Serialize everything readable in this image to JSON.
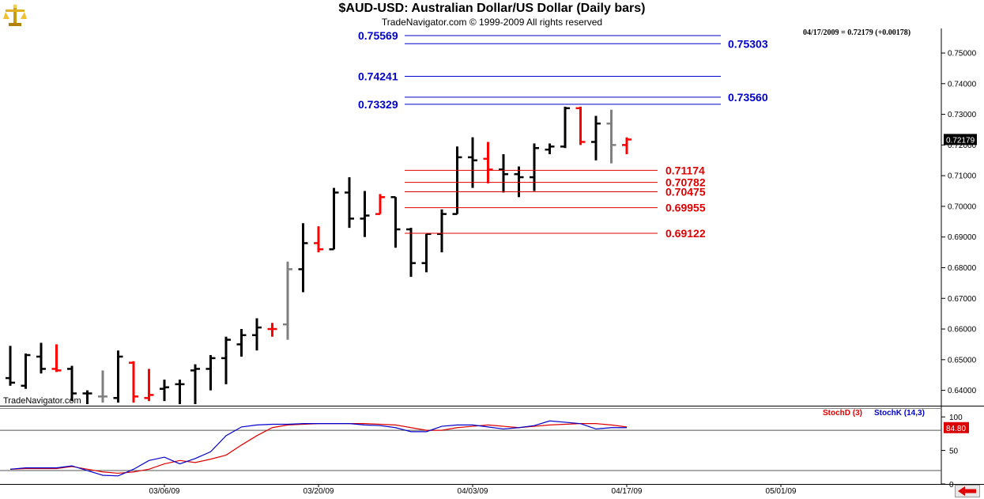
{
  "header": {
    "title": "$AUD-USD:  Australian Dollar/US Dollar  (Daily bars)",
    "subtitle": "TradeNavigator.com © 1999-2009 All rights reserved",
    "quote": "04/17/2009 = 0.72179 (+0.00178)",
    "watermark": "TradeNavigator.com"
  },
  "colors": {
    "up": "#000000",
    "down": "#ff0000",
    "neutral": "#808080",
    "blue_level": "#0000cc",
    "red_level": "#dd0000",
    "stoch_d": "#dd0000",
    "stoch_k": "#0000cc"
  },
  "icons": {
    "logo": "gold-scales-icon",
    "nav": "arrow-left-icon"
  },
  "chart_data": [
    {
      "type": "ohlc",
      "title": "$AUD-USD:  Australian Dollar/US Dollar  (Daily bars)",
      "ylim": [
        0.635,
        0.758
      ],
      "y_ticks": [
        "0.64000",
        "0.65000",
        "0.66000",
        "0.67000",
        "0.68000",
        "0.69000",
        "0.70000",
        "0.71000",
        "0.72000",
        "0.73000",
        "0.74000",
        "0.75000"
      ],
      "last_price_label": "0.72179",
      "x_tick_labels": [
        {
          "label": "03/06/09",
          "index": 10
        },
        {
          "label": "03/20/09",
          "index": 20
        },
        {
          "label": "04/03/09",
          "index": 30
        },
        {
          "label": "04/17/09",
          "index": 40
        },
        {
          "label": "05/01/09",
          "index": 50
        }
      ],
      "bars": [
        {
          "o": 0.644,
          "h": 0.6545,
          "l": 0.6415,
          "c": 0.6425,
          "col": "up"
        },
        {
          "o": 0.6415,
          "h": 0.652,
          "l": 0.6405,
          "c": 0.6515,
          "col": "up"
        },
        {
          "o": 0.651,
          "h": 0.6555,
          "l": 0.6455,
          "c": 0.647,
          "col": "up"
        },
        {
          "o": 0.647,
          "h": 0.655,
          "l": 0.646,
          "c": 0.6465,
          "col": "down"
        },
        {
          "o": 0.647,
          "h": 0.648,
          "l": 0.6365,
          "c": 0.639,
          "col": "up"
        },
        {
          "o": 0.639,
          "h": 0.64,
          "l": 0.6355,
          "c": 0.639,
          "col": "up"
        },
        {
          "o": 0.638,
          "h": 0.6465,
          "l": 0.636,
          "c": 0.638,
          "col": "neutral"
        },
        {
          "o": 0.6375,
          "h": 0.653,
          "l": 0.636,
          "c": 0.651,
          "col": "up"
        },
        {
          "o": 0.649,
          "h": 0.6495,
          "l": 0.636,
          "c": 0.638,
          "col": "down"
        },
        {
          "o": 0.6375,
          "h": 0.647,
          "l": 0.6365,
          "c": 0.6385,
          "col": "down"
        },
        {
          "o": 0.6405,
          "h": 0.6435,
          "l": 0.6365,
          "c": 0.641,
          "col": "up"
        },
        {
          "o": 0.642,
          "h": 0.6435,
          "l": 0.6355,
          "c": 0.642,
          "col": "up"
        },
        {
          "o": 0.6465,
          "h": 0.6485,
          "l": 0.6355,
          "c": 0.647,
          "col": "up"
        },
        {
          "o": 0.647,
          "h": 0.6515,
          "l": 0.64,
          "c": 0.6505,
          "col": "up"
        },
        {
          "o": 0.6505,
          "h": 0.6575,
          "l": 0.642,
          "c": 0.6565,
          "col": "up"
        },
        {
          "o": 0.655,
          "h": 0.66,
          "l": 0.651,
          "c": 0.658,
          "col": "up"
        },
        {
          "o": 0.658,
          "h": 0.6635,
          "l": 0.653,
          "c": 0.6605,
          "col": "up"
        },
        {
          "o": 0.66,
          "h": 0.662,
          "l": 0.6575,
          "c": 0.66,
          "col": "down"
        },
        {
          "o": 0.6615,
          "h": 0.682,
          "l": 0.6565,
          "c": 0.6795,
          "col": "neutral"
        },
        {
          "o": 0.6795,
          "h": 0.6945,
          "l": 0.672,
          "c": 0.688,
          "col": "up"
        },
        {
          "o": 0.688,
          "h": 0.6935,
          "l": 0.685,
          "c": 0.686,
          "col": "down"
        },
        {
          "o": 0.686,
          "h": 0.706,
          "l": 0.686,
          "c": 0.7045,
          "col": "up"
        },
        {
          "o": 0.7045,
          "h": 0.7095,
          "l": 0.693,
          "c": 0.696,
          "col": "up"
        },
        {
          "o": 0.696,
          "h": 0.705,
          "l": 0.69,
          "c": 0.697,
          "col": "up"
        },
        {
          "o": 0.6975,
          "h": 0.704,
          "l": 0.6975,
          "c": 0.703,
          "col": "down"
        },
        {
          "o": 0.703,
          "h": 0.703,
          "l": 0.6865,
          "c": 0.6925,
          "col": "up"
        },
        {
          "o": 0.6925,
          "h": 0.693,
          "l": 0.677,
          "c": 0.6815,
          "col": "up"
        },
        {
          "o": 0.6815,
          "h": 0.691,
          "l": 0.6785,
          "c": 0.691,
          "col": "up"
        },
        {
          "o": 0.691,
          "h": 0.699,
          "l": 0.685,
          "c": 0.6975,
          "col": "up"
        },
        {
          "o": 0.6975,
          "h": 0.7195,
          "l": 0.6975,
          "c": 0.716,
          "col": "up"
        },
        {
          "o": 0.716,
          "h": 0.7225,
          "l": 0.706,
          "c": 0.715,
          "col": "up"
        },
        {
          "o": 0.7155,
          "h": 0.721,
          "l": 0.7075,
          "c": 0.712,
          "col": "down"
        },
        {
          "o": 0.712,
          "h": 0.717,
          "l": 0.7045,
          "c": 0.7105,
          "col": "up"
        },
        {
          "o": 0.7105,
          "h": 0.713,
          "l": 0.703,
          "c": 0.7095,
          "col": "up"
        },
        {
          "o": 0.7095,
          "h": 0.7205,
          "l": 0.705,
          "c": 0.719,
          "col": "up"
        },
        {
          "o": 0.7185,
          "h": 0.7205,
          "l": 0.717,
          "c": 0.7195,
          "col": "up"
        },
        {
          "o": 0.7195,
          "h": 0.7325,
          "l": 0.719,
          "c": 0.732,
          "col": "up"
        },
        {
          "o": 0.732,
          "h": 0.7325,
          "l": 0.72,
          "c": 0.721,
          "col": "down"
        },
        {
          "o": 0.721,
          "h": 0.7295,
          "l": 0.715,
          "c": 0.727,
          "col": "up"
        },
        {
          "o": 0.727,
          "h": 0.7315,
          "l": 0.714,
          "c": 0.72,
          "col": "neutral"
        },
        {
          "o": 0.72,
          "h": 0.7225,
          "l": 0.717,
          "c": 0.7218,
          "col": "down"
        }
      ],
      "levels_blue": [
        {
          "value": 0.75569,
          "label": "0.75569",
          "label_side": "left"
        },
        {
          "value": 0.75303,
          "label": "0.75303",
          "label_side": "right"
        },
        {
          "value": 0.74241,
          "label": "0.74241",
          "label_side": "left"
        },
        {
          "value": 0.7356,
          "label": "0.73560",
          "label_side": "right"
        },
        {
          "value": 0.73329,
          "label": "0.73329",
          "label_side": "left"
        }
      ],
      "levels_red": [
        {
          "value": 0.71174,
          "label": "0.71174"
        },
        {
          "value": 0.70782,
          "label": "0.70782"
        },
        {
          "value": 0.70475,
          "label": "0.70475"
        },
        {
          "value": 0.69955,
          "label": "0.69955"
        },
        {
          "value": 0.69122,
          "label": "0.69122"
        }
      ]
    },
    {
      "type": "line",
      "legend": [
        "StochD (3)",
        "StochK (14,3)"
      ],
      "ylim": [
        0,
        112
      ],
      "y_ticks": [
        "100",
        "50",
        "0"
      ],
      "hlines": [
        80,
        20
      ],
      "last_value_label": "84.80",
      "series": [
        {
          "name": "StochD (3)",
          "values": [
            22,
            23,
            23,
            23,
            26,
            22,
            18,
            16,
            18,
            22,
            30,
            35,
            32,
            37,
            43,
            58,
            72,
            84,
            88,
            89,
            90,
            90,
            90,
            90,
            89,
            88,
            84,
            80,
            80,
            84,
            86,
            88,
            86,
            84,
            86,
            88,
            89,
            90,
            90,
            88,
            85
          ]
        },
        {
          "name": "StochK (14,3)",
          "values": [
            22,
            24,
            24,
            24,
            27,
            20,
            13,
            12,
            22,
            35,
            40,
            30,
            38,
            48,
            72,
            85,
            88,
            89,
            89,
            90,
            90,
            90,
            90,
            88,
            87,
            84,
            78,
            78,
            86,
            88,
            88,
            85,
            82,
            84,
            87,
            94,
            92,
            90,
            82,
            84,
            84
          ]
        }
      ]
    }
  ]
}
